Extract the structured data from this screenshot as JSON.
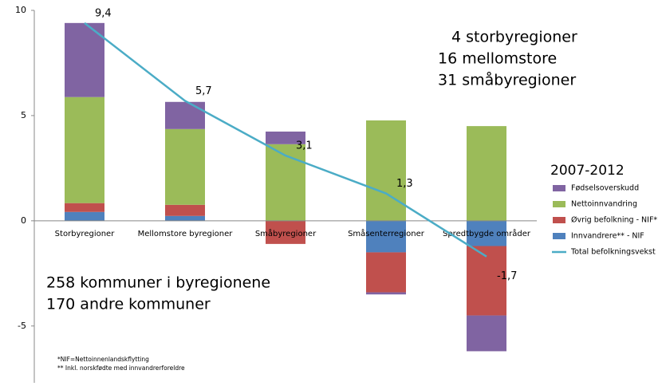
{
  "chart_data": {
    "type": "bar",
    "stacked": true,
    "categories": [
      "Storbyregioner",
      "Mellomstore byregioner",
      "Småbyregioner",
      "Småsenterregioner",
      "Spredtbygde områder"
    ],
    "series": [
      {
        "name": "Fødselsoverskudd",
        "color": "#8064a2",
        "values": [
          3.52,
          1.29,
          0.6,
          -0.1,
          -1.7
        ]
      },
      {
        "name": "Nettoinnvandring",
        "color": "#9bbb59",
        "values": [
          5.04,
          3.6,
          3.64,
          4.77,
          4.5
        ]
      },
      {
        "name": "Øvrig befolkning - NIF*",
        "color": "#c0504d",
        "values": [
          0.42,
          0.53,
          -1.1,
          -1.9,
          -3.3
        ]
      },
      {
        "name": "Innvandrere** - NIF",
        "color": "#4f81bd",
        "values": [
          0.42,
          0.23,
          0,
          -1.5,
          -1.2
        ]
      },
      {
        "name": "Total befolkningsvekst",
        "type": "line",
        "color": "#4bacc6",
        "values": [
          9.4,
          5.7,
          3.1,
          1.3,
          -1.7
        ],
        "value_labels": [
          "9,4",
          "5,7",
          "3,1",
          "1,3",
          "-1,7"
        ]
      }
    ],
    "ylim": [
      -7.7,
      10
    ],
    "yticks": [
      -5,
      0,
      5,
      10
    ],
    "legend_title": "2007-2012",
    "legend": "right",
    "annotations": [
      "4 storbyregioner",
      "16 mellomstore",
      "31 småbyregioner",
      "258 kommuner i byregionene",
      "170 andre kommuner"
    ],
    "footnotes": [
      "*NIF=Nettoinnenlandskflytting",
      "** Inkl. norskfødte med innvandrerforeldre"
    ]
  }
}
